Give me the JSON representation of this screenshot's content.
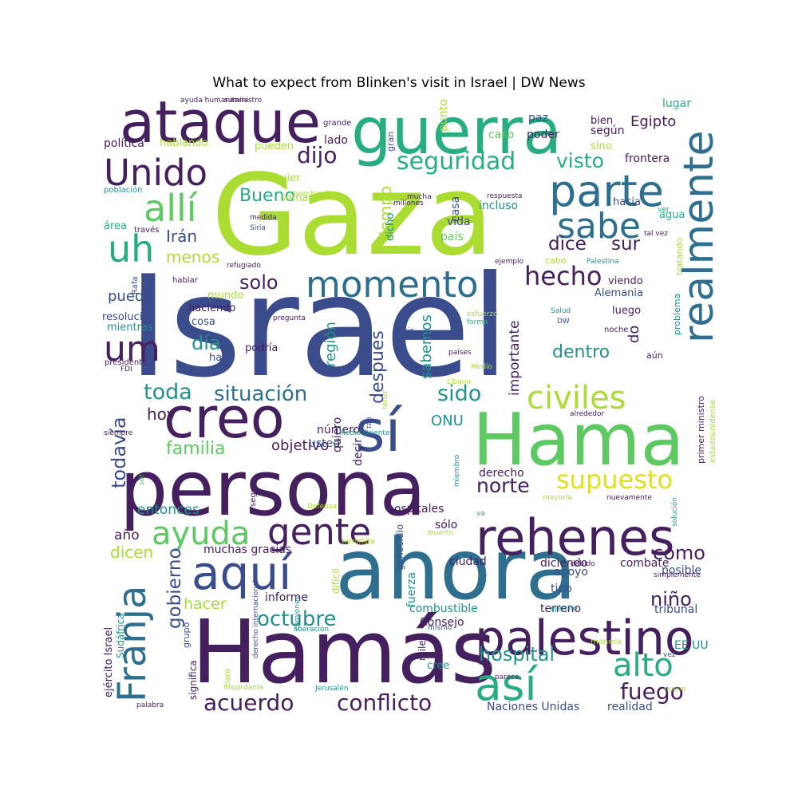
{
  "title": "What to expect from Blinken's visit in Israel | DW News",
  "palette": {
    "purple": "#44205f",
    "indigo": "#3b4c8c",
    "blue": "#2e6e8e",
    "teal": "#21918c",
    "green": "#27ad81",
    "lightgreen": "#5ec962",
    "lime": "#aadc32",
    "yellow": "#dde318"
  },
  "words": [
    [
      "Israel",
      "indigo"
    ],
    [
      "Gaza",
      "lime"
    ],
    [
      "Hamás",
      "purple"
    ],
    [
      "ahora",
      "blue"
    ],
    [
      "persona",
      "purple"
    ],
    [
      "Hama",
      "lightgreen"
    ],
    [
      "guerra",
      "green"
    ],
    [
      "ataque",
      "purple"
    ],
    [
      "rehenes",
      "purple"
    ],
    [
      "creo",
      "purple"
    ],
    [
      "sí",
      "indigo"
    ],
    [
      "palestino",
      "purple"
    ],
    [
      "realmente",
      "blue"
    ],
    [
      "momento",
      "blue"
    ],
    [
      "Unido",
      "purple"
    ],
    [
      "parte",
      "blue"
    ],
    [
      "sabe",
      "blue"
    ],
    [
      "así",
      "green"
    ],
    [
      "aquí",
      "indigo"
    ],
    [
      "gente",
      "purple"
    ],
    [
      "ayuda",
      "lightgreen"
    ],
    [
      "uh",
      "green"
    ],
    [
      "um",
      "purple"
    ],
    [
      "allí",
      "lightgreen"
    ],
    [
      "civiles",
      "lime"
    ],
    [
      "Franja",
      "blue"
    ],
    [
      "supuesto",
      "yellow"
    ],
    [
      "alto",
      "green"
    ],
    [
      "hecho",
      "purple"
    ],
    [
      "seguridad",
      "green"
    ],
    [
      "situación",
      "blue"
    ],
    [
      "acuerdo",
      "purple"
    ],
    [
      "conflicto",
      "purple"
    ],
    [
      "octubre",
      "teal"
    ],
    [
      "toda",
      "teal"
    ],
    [
      "dijo",
      "purple"
    ],
    [
      "sido",
      "teal"
    ],
    [
      "fuego",
      "purple"
    ],
    [
      "hospital",
      "teal"
    ],
    [
      "norte",
      "purple"
    ],
    [
      "visto",
      "green"
    ],
    [
      "Bueno",
      "green"
    ],
    [
      "día",
      "teal"
    ],
    [
      "dentro",
      "teal"
    ],
    [
      "dice",
      "purple"
    ],
    [
      "sur",
      "purple"
    ],
    [
      "Irán",
      "indigo"
    ],
    [
      "menos",
      "lime"
    ],
    [
      "solo",
      "purple"
    ],
    [
      "todavía",
      "indigo"
    ],
    [
      "gobierno",
      "indigo"
    ],
    [
      "niño",
      "purple"
    ],
    [
      "cómo",
      "purple"
    ],
    [
      "familia",
      "lightgreen"
    ],
    [
      "objetivo",
      "purple"
    ],
    [
      "después",
      "indigo"
    ],
    [
      "región",
      "teal"
    ],
    [
      "sabemos",
      "teal"
    ],
    [
      "importante",
      "purple"
    ],
    [
      "tiempo",
      "lime"
    ],
    [
      "Egipto",
      "purple"
    ],
    [
      "hoy",
      "purple"
    ],
    [
      "puede",
      "indigo"
    ],
    [
      "dicen",
      "lime"
    ],
    [
      "hacer",
      "lime"
    ],
    [
      "ONU",
      "teal"
    ],
    [
      "entonces",
      "teal"
    ],
    [
      "año",
      "purple"
    ],
    [
      "do",
      "purple"
    ],
    [
      "informe",
      "purple"
    ],
    [
      "combustible",
      "teal"
    ],
    [
      "Consejo",
      "purple"
    ],
    [
      "fuerza",
      "teal"
    ],
    [
      "Naciones Unidas",
      "indigo"
    ],
    [
      "realidad",
      "indigo"
    ],
    [
      "muchas gracias",
      "purple"
    ],
    [
      "diciendo",
      "purple"
    ],
    [
      "combate",
      "purple"
    ],
    [
      "ciudad",
      "purple"
    ],
    [
      "apoyo",
      "indigo"
    ],
    [
      "tipo",
      "indigo"
    ],
    [
      "terreno",
      "purple"
    ],
    [
      "tribunal",
      "indigo"
    ],
    [
      "EE UU",
      "teal"
    ],
    [
      "posible",
      "indigo"
    ],
    [
      "hospitales",
      "purple"
    ],
    [
      "sólo",
      "purple"
    ],
    [
      "derecho",
      "purple"
    ],
    [
      "número",
      "purple"
    ],
    [
      "usted",
      "indigo"
    ],
    [
      "quiero",
      "purple"
    ],
    [
      "decir",
      "purple"
    ],
    [
      "mientras",
      "teal"
    ],
    [
      "resolución",
      "indigo"
    ],
    [
      "presidente",
      "purple"
    ],
    [
      "haciendo",
      "purple"
    ],
    [
      "cosa",
      "indigo"
    ],
    [
      "hace",
      "indigo"
    ],
    [
      "podría",
      "purple"
    ],
    [
      "mundo",
      "lime"
    ],
    [
      "Alemania",
      "indigo"
    ],
    [
      "viendo",
      "purple"
    ],
    [
      "luego",
      "purple"
    ],
    [
      "agua",
      "green"
    ],
    [
      "hacia",
      "indigo"
    ],
    [
      "frontera",
      "purple"
    ],
    [
      "lugar",
      "green"
    ],
    [
      "poder",
      "purple"
    ],
    [
      "según",
      "purple"
    ],
    [
      "bien",
      "purple"
    ],
    [
      "paz",
      "indigo"
    ],
    [
      "caso",
      "lightgreen"
    ],
    [
      "sino",
      "lime"
    ],
    [
      "lado",
      "purple"
    ],
    [
      "pueden",
      "lime"
    ],
    [
      "hablando",
      "lime"
    ],
    [
      "política",
      "purple"
    ],
    [
      "cualquier",
      "lime"
    ],
    [
      "semana",
      "lime"
    ],
    [
      "país",
      "lightgreen"
    ],
    [
      "vida",
      "indigo"
    ],
    [
      "incluso",
      "teal"
    ],
    [
      "casa",
      "indigo"
    ],
    [
      "dicho",
      "teal"
    ],
    [
      "punto",
      "lime"
    ],
    [
      "gran",
      "indigo"
    ],
    [
      "grande",
      "purple"
    ],
    [
      "mucha",
      "purple"
    ],
    [
      "millones",
      "purple"
    ],
    [
      "medida",
      "purple"
    ],
    [
      "Siria",
      "indigo"
    ],
    [
      "través",
      "purple"
    ],
    [
      "área",
      "green"
    ],
    [
      "población",
      "teal"
    ],
    [
      "bombardeo",
      "lime"
    ],
    [
      "respuesta",
      "purple"
    ],
    [
      "ejemplo",
      "purple"
    ],
    [
      "cabo",
      "lime"
    ],
    [
      "Palestina",
      "teal"
    ],
    [
      "tratando",
      "lime"
    ],
    [
      "problema",
      "teal"
    ],
    [
      "refugiado",
      "purple"
    ],
    [
      "hablar",
      "purple"
    ],
    [
      "pregunta",
      "purple"
    ],
    [
      "países",
      "purple"
    ],
    [
      "bajo",
      "indigo"
    ],
    [
      "forma",
      "green"
    ],
    [
      "esfuerzo",
      "lime"
    ],
    [
      "Salud",
      "teal"
    ],
    [
      "DW",
      "indigo"
    ],
    [
      "noche",
      "purple"
    ],
    [
      "aún",
      "purple"
    ],
    [
      "FDI",
      "purple"
    ],
    [
      "primer ministro",
      "purple"
    ],
    [
      "estadounidense",
      "lime"
    ],
    [
      "alrededor",
      "purple"
    ],
    [
      "siempre",
      "purple"
    ],
    [
      "Medio Oriente",
      "teal"
    ],
    [
      "miembro",
      "teal"
    ],
    [
      "seguro",
      "purple"
    ],
    [
      "ser",
      "lightgreen"
    ],
    [
      "mayoría",
      "lime"
    ],
    [
      "nuevamente",
      "purple"
    ],
    [
      "solución",
      "teal"
    ],
    [
      "simplemente",
      "purple"
    ],
    [
      "debido",
      "purple"
    ],
    [
      "manera",
      "lime"
    ],
    [
      "Defensa",
      "lime"
    ],
    [
      "terrorista",
      "lime"
    ],
    [
      "muerto",
      "lime"
    ],
    [
      "va",
      "green"
    ],
    [
      "genocidio",
      "indigo"
    ],
    [
      "difícil",
      "lime"
    ],
    [
      "camiones",
      "teal"
    ],
    [
      "derecho internacional",
      "indigo"
    ],
    [
      "liberación",
      "teal"
    ],
    [
      "mismo",
      "indigo"
    ],
    [
      "miles",
      "purple"
    ],
    [
      "cree",
      "teal"
    ],
    [
      "parece",
      "purple"
    ],
    [
      "ejército Israel",
      "purple"
    ],
    [
      "Sudáfrica",
      "teal"
    ],
    [
      "grupo",
      "indigo"
    ],
    [
      "significa",
      "purple"
    ],
    [
      "claro",
      "lime"
    ],
    [
      "Cisjordania",
      "lime"
    ],
    [
      "Jerusalén",
      "teal"
    ],
    [
      "palabra",
      "purple"
    ],
    [
      "ejército",
      "teal"
    ],
    [
      "vez",
      "indigo"
    ],
    [
      "nuevo",
      "lime"
    ],
    [
      "suministro",
      "purple"
    ],
    [
      "ayuda humanitaria",
      "purple"
    ],
    [
      "Rafa",
      "indigo"
    ],
    [
      "Libano",
      "lime"
    ],
    [
      "Medio",
      "lime"
    ],
    [
      "tal vez",
      "purple"
    ],
    [
      "ver",
      "teal"
    ],
    [
      "tener",
      "lime"
    ],
    [
      "tan",
      "indigo"
    ]
  ]
}
